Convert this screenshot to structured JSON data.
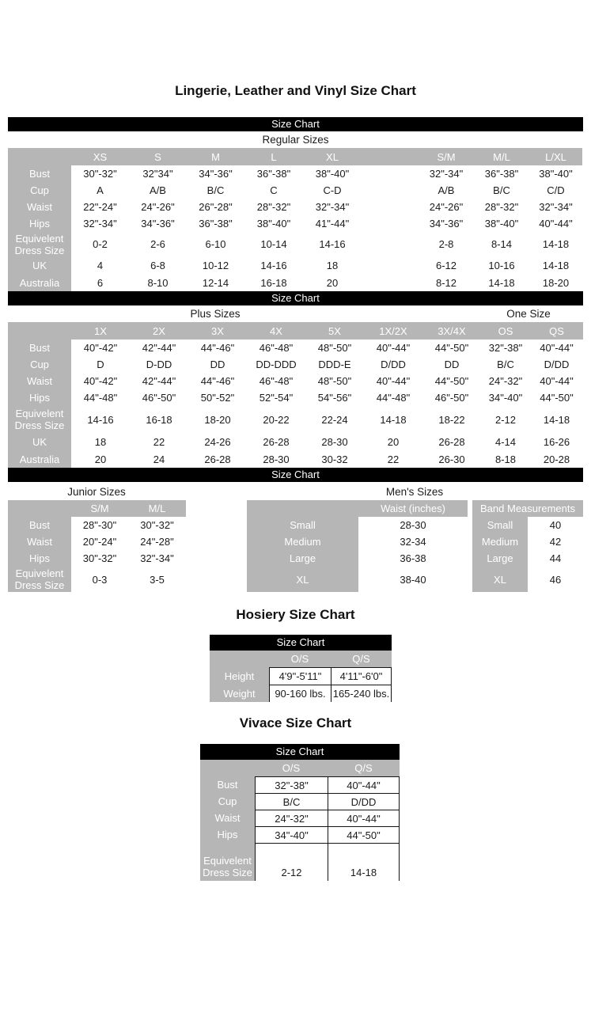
{
  "titles": {
    "main": "Lingerie, Leather and Vinyl Size Chart",
    "hosiery": "Hosiery Size Chart",
    "vivace": "Vivace Size Chart"
  },
  "bar_label": "Size Chart",
  "colors": {
    "bar_background": "#000000",
    "bar_text": "#ffffff",
    "header_gray": "#b6b6b6",
    "header_text": "#ffffff",
    "body_text": "#1b1b1b",
    "page_background": "#ffffff"
  },
  "regular": {
    "section_label": "Regular Sizes",
    "columns": [
      "XS",
      "S",
      "M",
      "L",
      "XL",
      "",
      "S/M",
      "M/L",
      "L/XL"
    ],
    "rows": [
      {
        "label": "Bust",
        "values": [
          "30\"-32\"",
          "32\"34\"",
          "34\"-36\"",
          "36\"-38\"",
          "38\"-40\"",
          null,
          "32\"-34\"",
          "36\"-38\"",
          "38\"-40\""
        ]
      },
      {
        "label": "Cup",
        "values": [
          "A",
          "A/B",
          "B/C",
          "C",
          "C-D",
          null,
          "A/B",
          "B/C",
          "C/D"
        ]
      },
      {
        "label": "Waist",
        "values": [
          "22\"-24\"",
          "24\"-26\"",
          "26\"-28\"",
          "28\"-32\"",
          "32\"-34\"",
          null,
          "24\"-26\"",
          "28\"-32\"",
          "32\"-34\""
        ]
      },
      {
        "label": "Hips",
        "values": [
          "32\"-34\"",
          "34\"-36\"",
          "36\"-38\"",
          "38\"-40\"",
          "41\"-44\"",
          null,
          "34\"-36\"",
          "38\"-40\"",
          "40\"-44\""
        ]
      },
      {
        "label": "Equivelent Dress Size",
        "values": [
          "0-2",
          "2-6",
          "6-10",
          "10-14",
          "14-16",
          null,
          "2-8",
          "8-14",
          "14-18"
        ]
      },
      {
        "label": "UK",
        "values": [
          "4",
          "6-8",
          "10-12",
          "14-16",
          "18",
          null,
          "6-12",
          "10-16",
          "14-18"
        ]
      },
      {
        "label": "Australia",
        "values": [
          "6",
          "8-10",
          "12-14",
          "16-18",
          "20",
          null,
          "8-12",
          "14-18",
          "18-20"
        ]
      }
    ]
  },
  "plus": {
    "section_label": "Plus Sizes",
    "one_size_label": "One Size",
    "columns": [
      "1X",
      "2X",
      "3X",
      "4X",
      "5X",
      "1X/2X",
      "3X/4X",
      "OS",
      "QS"
    ],
    "rows": [
      {
        "label": "Bust",
        "values": [
          "40\"-42\"",
          "42\"-44\"",
          "44\"-46\"",
          "46\"-48\"",
          "48\"-50\"",
          "40\"-44\"",
          "44\"-50\"",
          "32\"-38\"",
          "40\"-44\""
        ]
      },
      {
        "label": "Cup",
        "values": [
          "D",
          "D-DD",
          "DD",
          "DD-DDD",
          "DDD-E",
          "D/DD",
          "DD",
          "B/C",
          "D/DD"
        ]
      },
      {
        "label": "Waist",
        "values": [
          "40\"-42\"",
          "42\"-44\"",
          "44\"-46\"",
          "46\"-48\"",
          "48\"-50\"",
          "40\"-44\"",
          "44\"-50\"",
          "24\"-32\"",
          "40\"-44\""
        ]
      },
      {
        "label": "Hips",
        "values": [
          "44\"-48\"",
          "46\"-50\"",
          "50\"-52\"",
          "52\"-54\"",
          "54\"-56\"",
          "44\"-48\"",
          "46\"-50\"",
          "34\"-40\"",
          "44\"-50\""
        ]
      },
      {
        "label": "Equivelent Dress Size",
        "values": [
          "14-16",
          "16-18",
          "18-20",
          "20-22",
          "22-24",
          "14-18",
          "18-22",
          "2-12",
          "14-18"
        ]
      },
      {
        "label": "UK",
        "values": [
          "18",
          "22",
          "24-26",
          "26-28",
          "28-30",
          "20",
          "26-28",
          "4-14",
          "16-26"
        ]
      },
      {
        "label": "Australia",
        "values": [
          "20",
          "24",
          "26-28",
          "28-30",
          "30-32",
          "22",
          "26-30",
          "8-18",
          "20-28"
        ]
      }
    ]
  },
  "junior": {
    "section_label": "Junior Sizes",
    "columns": [
      "S/M",
      "M/L"
    ],
    "rows": [
      {
        "label": "Bust",
        "values": [
          "28\"-30\"",
          "30\"-32\""
        ]
      },
      {
        "label": "Waist",
        "values": [
          "20\"-24\"",
          "24\"-28\""
        ]
      },
      {
        "label": "Hips",
        "values": [
          "30\"-32\"",
          "32\"-34\""
        ]
      },
      {
        "label": "Equivelent Dress Size",
        "values": [
          "0-3",
          "3-5"
        ]
      }
    ]
  },
  "mens": {
    "section_label": "Men's Sizes",
    "waist": {
      "columns": [
        "Waist (inches)"
      ],
      "rows": [
        {
          "label": "Small",
          "values": [
            "28-30"
          ]
        },
        {
          "label": "Medium",
          "values": [
            "32-34"
          ]
        },
        {
          "label": "Large",
          "values": [
            "36-38"
          ]
        },
        {
          "label": "XL",
          "values": [
            "38-40"
          ]
        }
      ]
    },
    "band": {
      "header": "Band Measurements",
      "rows": [
        {
          "label": "Small",
          "values": [
            "40"
          ]
        },
        {
          "label": "Medium",
          "values": [
            "42"
          ]
        },
        {
          "label": "Large",
          "values": [
            "44"
          ]
        },
        {
          "label": "XL",
          "values": [
            "46"
          ]
        }
      ]
    }
  },
  "hosiery": {
    "bar_label": "Size Chart",
    "columns": [
      "O/S",
      "Q/S"
    ],
    "rows": [
      {
        "label": "Height",
        "values": [
          "4'9\"-5'11\"",
          "4'11\"-6'0\""
        ]
      },
      {
        "label": "Weight",
        "values": [
          "90-160 lbs.",
          "165-240 lbs."
        ]
      }
    ]
  },
  "vivace": {
    "bar_label": "Size Chart",
    "columns": [
      "O/S",
      "Q/S"
    ],
    "rows": [
      {
        "label": "Bust",
        "values": [
          "32\"-38\"",
          "40\"-44\""
        ]
      },
      {
        "label": "Cup",
        "values": [
          "B/C",
          "D/DD"
        ]
      },
      {
        "label": "Waist",
        "values": [
          "24\"-32\"",
          "40\"-44\""
        ]
      },
      {
        "label": "Hips",
        "values": [
          "34\"-40\"",
          "44\"-50\""
        ]
      },
      {
        "label": "Equivelent Dress Size",
        "values": [
          "2-12",
          "14-18"
        ]
      }
    ]
  }
}
